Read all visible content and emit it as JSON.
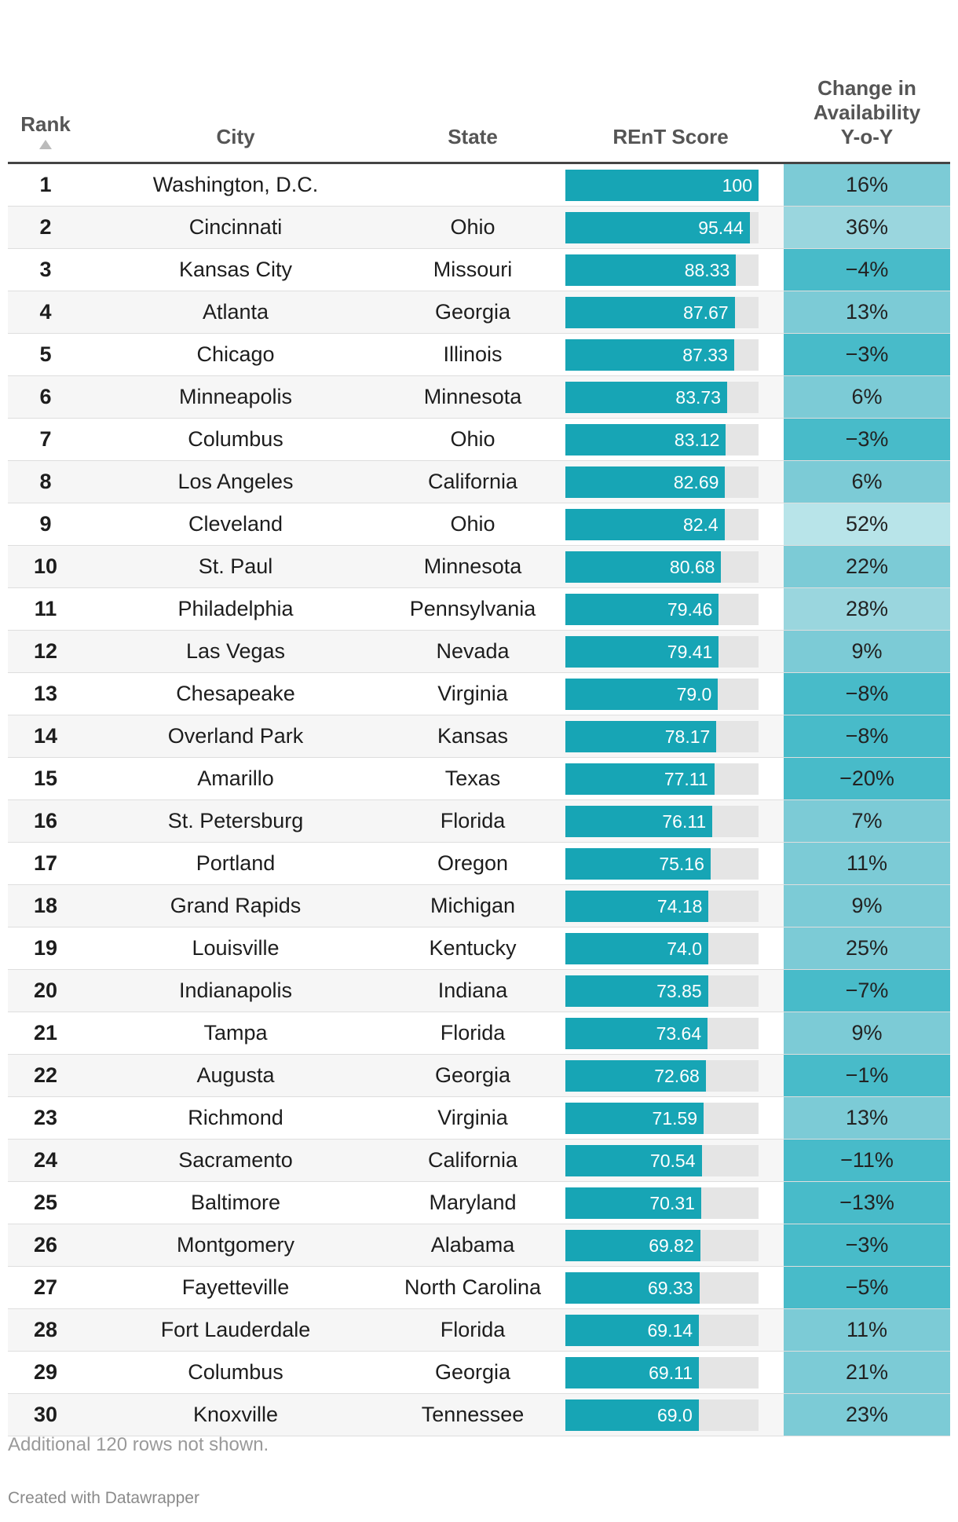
{
  "chart_data": {
    "type": "table",
    "columns": {
      "rank": "Rank",
      "city": "City",
      "state": "State",
      "score": "REnT Score",
      "change_lines": [
        "Change in",
        "Availability",
        "Y-o-Y"
      ]
    },
    "score_max": 100,
    "colors": {
      "bar": "#17a5b5",
      "bar_track": "#e5e5e5",
      "change_negative": "#48bbc9",
      "change_low": "#7ccbd6",
      "change_mid": "#9ad6de",
      "change_high": "#b8e4e9"
    },
    "rows": [
      {
        "rank": "1",
        "city": "Washington, D.C.",
        "state": "",
        "score": 100,
        "score_label": "100",
        "change": 16,
        "change_label": "16%"
      },
      {
        "rank": "2",
        "city": "Cincinnati",
        "state": "Ohio",
        "score": 95.44,
        "score_label": "95.44",
        "change": 36,
        "change_label": "36%"
      },
      {
        "rank": "3",
        "city": "Kansas City",
        "state": "Missouri",
        "score": 88.33,
        "score_label": "88.33",
        "change": -4,
        "change_label": "−4%"
      },
      {
        "rank": "4",
        "city": "Atlanta",
        "state": "Georgia",
        "score": 87.67,
        "score_label": "87.67",
        "change": 13,
        "change_label": "13%"
      },
      {
        "rank": "5",
        "city": "Chicago",
        "state": "Illinois",
        "score": 87.33,
        "score_label": "87.33",
        "change": -3,
        "change_label": "−3%"
      },
      {
        "rank": "6",
        "city": "Minneapolis",
        "state": "Minnesota",
        "score": 83.73,
        "score_label": "83.73",
        "change": 6,
        "change_label": "6%"
      },
      {
        "rank": "7",
        "city": "Columbus",
        "state": "Ohio",
        "score": 83.12,
        "score_label": "83.12",
        "change": -3,
        "change_label": "−3%"
      },
      {
        "rank": "8",
        "city": "Los Angeles",
        "state": "California",
        "score": 82.69,
        "score_label": "82.69",
        "change": 6,
        "change_label": "6%"
      },
      {
        "rank": "9",
        "city": "Cleveland",
        "state": "Ohio",
        "score": 82.4,
        "score_label": "82.4",
        "change": 52,
        "change_label": "52%"
      },
      {
        "rank": "10",
        "city": "St. Paul",
        "state": "Minnesota",
        "score": 80.68,
        "score_label": "80.68",
        "change": 22,
        "change_label": "22%"
      },
      {
        "rank": "11",
        "city": "Philadelphia",
        "state": "Pennsylvania",
        "score": 79.46,
        "score_label": "79.46",
        "change": 28,
        "change_label": "28%"
      },
      {
        "rank": "12",
        "city": "Las Vegas",
        "state": "Nevada",
        "score": 79.41,
        "score_label": "79.41",
        "change": 9,
        "change_label": "9%"
      },
      {
        "rank": "13",
        "city": "Chesapeake",
        "state": "Virginia",
        "score": 79.0,
        "score_label": "79.0",
        "change": -8,
        "change_label": "−8%"
      },
      {
        "rank": "14",
        "city": "Overland Park",
        "state": "Kansas",
        "score": 78.17,
        "score_label": "78.17",
        "change": -8,
        "change_label": "−8%"
      },
      {
        "rank": "15",
        "city": "Amarillo",
        "state": "Texas",
        "score": 77.11,
        "score_label": "77.11",
        "change": -20,
        "change_label": "−20%"
      },
      {
        "rank": "16",
        "city": "St. Petersburg",
        "state": "Florida",
        "score": 76.11,
        "score_label": "76.11",
        "change": 7,
        "change_label": "7%"
      },
      {
        "rank": "17",
        "city": "Portland",
        "state": "Oregon",
        "score": 75.16,
        "score_label": "75.16",
        "change": 11,
        "change_label": "11%"
      },
      {
        "rank": "18",
        "city": "Grand Rapids",
        "state": "Michigan",
        "score": 74.18,
        "score_label": "74.18",
        "change": 9,
        "change_label": "9%"
      },
      {
        "rank": "19",
        "city": "Louisville",
        "state": "Kentucky",
        "score": 74.0,
        "score_label": "74.0",
        "change": 25,
        "change_label": "25%"
      },
      {
        "rank": "20",
        "city": "Indianapolis",
        "state": "Indiana",
        "score": 73.85,
        "score_label": "73.85",
        "change": -7,
        "change_label": "−7%"
      },
      {
        "rank": "21",
        "city": "Tampa",
        "state": "Florida",
        "score": 73.64,
        "score_label": "73.64",
        "change": 9,
        "change_label": "9%"
      },
      {
        "rank": "22",
        "city": "Augusta",
        "state": "Georgia",
        "score": 72.68,
        "score_label": "72.68",
        "change": -1,
        "change_label": "−1%"
      },
      {
        "rank": "23",
        "city": "Richmond",
        "state": "Virginia",
        "score": 71.59,
        "score_label": "71.59",
        "change": 13,
        "change_label": "13%"
      },
      {
        "rank": "24",
        "city": "Sacramento",
        "state": "California",
        "score": 70.54,
        "score_label": "70.54",
        "change": -11,
        "change_label": "−11%"
      },
      {
        "rank": "25",
        "city": "Baltimore",
        "state": "Maryland",
        "score": 70.31,
        "score_label": "70.31",
        "change": -13,
        "change_label": "−13%"
      },
      {
        "rank": "26",
        "city": "Montgomery",
        "state": "Alabama",
        "score": 69.82,
        "score_label": "69.82",
        "change": -3,
        "change_label": "−3%"
      },
      {
        "rank": "27",
        "city": "Fayetteville",
        "state": "North Carolina",
        "score": 69.33,
        "score_label": "69.33",
        "change": -5,
        "change_label": "−5%"
      },
      {
        "rank": "28",
        "city": "Fort Lauderdale",
        "state": "Florida",
        "score": 69.14,
        "score_label": "69.14",
        "change": 11,
        "change_label": "11%"
      },
      {
        "rank": "29",
        "city": "Columbus",
        "state": "Georgia",
        "score": 69.11,
        "score_label": "69.11",
        "change": 21,
        "change_label": "21%"
      },
      {
        "rank": "30",
        "city": "Knoxville",
        "state": "Tennessee",
        "score": 69.0,
        "score_label": "69.0",
        "change": 23,
        "change_label": "23%"
      }
    ],
    "notes": "Additional 120 rows not shown.",
    "credit": "Created with Datawrapper"
  }
}
